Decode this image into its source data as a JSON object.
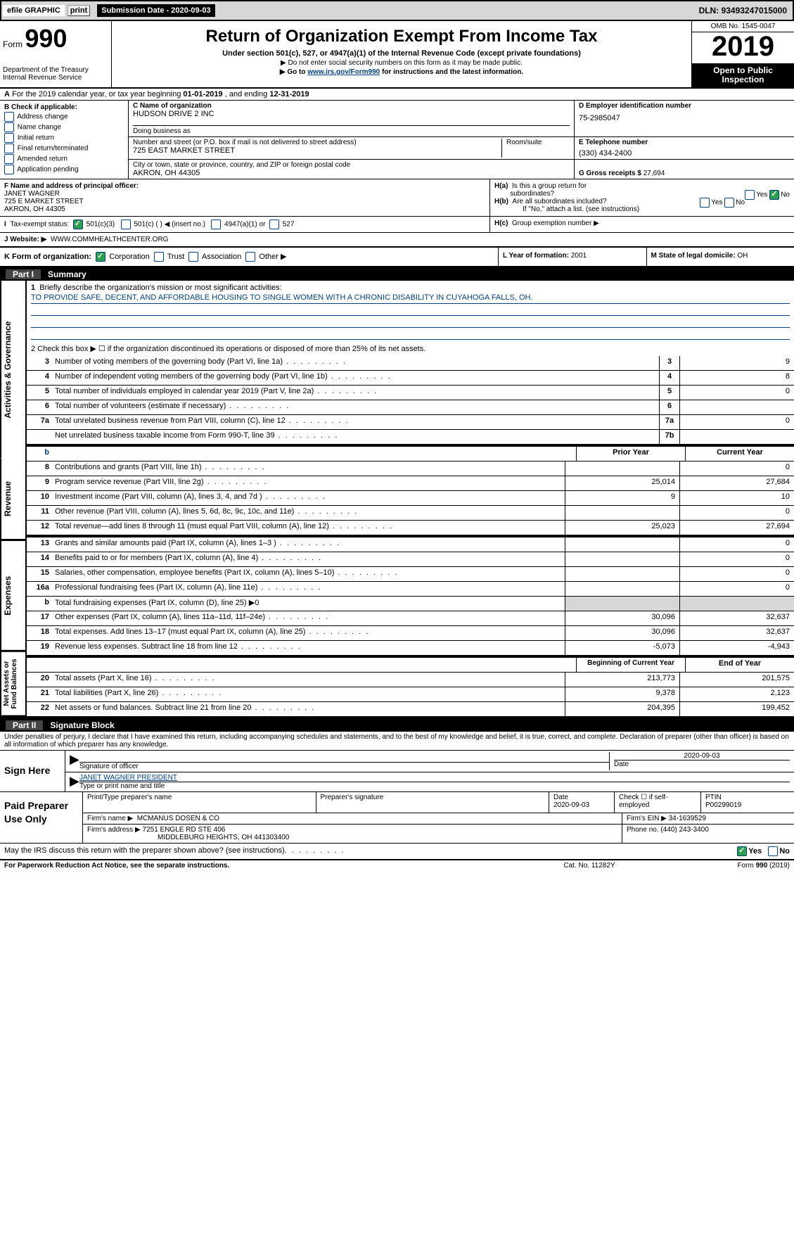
{
  "colors": {
    "link": "#004080",
    "check_green": "#2e9e4f",
    "shaded": "#d7d7d7"
  },
  "top_bar": {
    "efile_link": "efile GRAPHIC",
    "print_btn": "print",
    "submission_label": "Submission Date - ",
    "submission_date": "2020-09-03",
    "dln": "DLN: 93493247015000"
  },
  "header": {
    "form_label": "Form",
    "form_number": "990",
    "title": "Return of Organization Exempt From Income Tax",
    "subtitle": "Under section 501(c), 527, or 4947(a)(1) of the Internal Revenue Code (except private foundations)",
    "note1": "▶ Do not enter social security numbers on this form as it may be made public.",
    "goto_prefix": "▶ Go to ",
    "goto_link": "www.irs.gov/Form990",
    "goto_suffix": " for instructions and the latest information.",
    "dept": "Department of the Treasury\nInternal Revenue Service",
    "omb": "OMB No. 1545-0047",
    "year": "2019",
    "open_public": "Open to Public Inspection"
  },
  "row_a": {
    "label_a": "A",
    "text": "For the 2019 calendar year, or tax year beginning ",
    "begin_date": "01-01-2019",
    "mid": " , and ending ",
    "end_date": "12-31-2019"
  },
  "section_b": {
    "title": "B Check if applicable:",
    "opts": [
      "Address change",
      "Name change",
      "Initial return",
      "Final return/terminated",
      "Amended return",
      "Application pending"
    ]
  },
  "section_c": {
    "label": "C Name of organization",
    "org_name": "HUDSON DRIVE 2 INC",
    "dba_label": "Doing business as",
    "dba": "",
    "addr_label": "Number and street (or P.O. box if mail is not delivered to street address)",
    "room_label": "Room/suite",
    "addr": "725 EAST MARKET STREET",
    "city_label": "City or town, state or province, country, and ZIP or foreign postal code",
    "city": "AKRON, OH  44305"
  },
  "section_d": {
    "label": "D Employer identification number",
    "ein": "75-2985047"
  },
  "section_e": {
    "label": "E Telephone number",
    "phone": "(330) 434-2400"
  },
  "section_g": {
    "label": "G Gross receipts $ ",
    "value": "27,694"
  },
  "section_f": {
    "label": "F  Name and address of principal officer:",
    "name": "JANET WAGNER",
    "addr1": "725 E MARKET STREET",
    "addr2": "AKRON, OH  44305"
  },
  "section_h": {
    "ha": "H(a)  Is this a group return for subordinates?",
    "hb": "H(b)  Are all subordinates included?",
    "hb_note": "If \"No,\" attach a list. (see instructions)",
    "hc": "H(c)  Group exemption number ▶",
    "yes": "Yes",
    "no": "No"
  },
  "section_i": {
    "label": "I  Tax-exempt status:",
    "opt1": "501(c)(3)",
    "opt2": "501(c) (  ) ◀ (insert no.)",
    "opt3": "4947(a)(1) or",
    "opt4": "527"
  },
  "section_j": {
    "label": "J  Website: ▶",
    "url": "WWW.COMMHEALTHCENTER.ORG"
  },
  "section_k": {
    "label": "K Form of organization:",
    "opts": [
      "Corporation",
      "Trust",
      "Association",
      "Other ▶"
    ]
  },
  "section_l": {
    "label": "L Year of formation: ",
    "value": "2001"
  },
  "section_m": {
    "label": "M State of legal domicile: ",
    "value": "OH"
  },
  "part1": {
    "header_num": "Part I",
    "header_title": "Summary",
    "side_labels": {
      "governance": "Activities & Governance",
      "revenue": "Revenue",
      "expenses": "Expenses",
      "net": "Net Assets or Fund Balances"
    },
    "line1_label": "1  Briefly describe the organization's mission or most significant activities:",
    "mission": "TO PROVIDE SAFE, DECENT, AND AFFORDABLE HOUSING TO SINGLE WOMEN WITH A CHRONIC DISABILITY IN CUYAHOGA FALLS, OH.",
    "line2": "2  Check this box ▶ ☐  if the organization discontinued its operations or disposed of more than 25% of its net assets.",
    "rows_governance": [
      {
        "num": "3",
        "desc": "Number of voting members of the governing body (Part VI, line 1a)",
        "box": "3",
        "val": "9"
      },
      {
        "num": "4",
        "desc": "Number of independent voting members of the governing body (Part VI, line 1b)",
        "box": "4",
        "val": "8"
      },
      {
        "num": "5",
        "desc": "Total number of individuals employed in calendar year 2019 (Part V, line 2a)",
        "box": "5",
        "val": "0"
      },
      {
        "num": "6",
        "desc": "Total number of volunteers (estimate if necessary)",
        "box": "6",
        "val": ""
      },
      {
        "num": "7a",
        "desc": "Total unrelated business revenue from Part VIII, column (C), line 12",
        "box": "7a",
        "val": "0"
      },
      {
        "num": "",
        "desc": "Net unrelated business taxable income from Form 990-T, line 39",
        "box": "7b",
        "val": ""
      }
    ],
    "col_headers": {
      "b_empty": "b",
      "prior": "Prior Year",
      "current": "Current Year",
      "begin": "Beginning of Current Year",
      "end": "End of Year"
    },
    "rows_revenue": [
      {
        "num": "8",
        "desc": "Contributions and grants (Part VIII, line 1h)",
        "prior": "",
        "current": "0"
      },
      {
        "num": "9",
        "desc": "Program service revenue (Part VIII, line 2g)",
        "prior": "25,014",
        "current": "27,684"
      },
      {
        "num": "10",
        "desc": "Investment income (Part VIII, column (A), lines 3, 4, and 7d )",
        "prior": "9",
        "current": "10"
      },
      {
        "num": "11",
        "desc": "Other revenue (Part VIII, column (A), lines 5, 6d, 8c, 9c, 10c, and 11e)",
        "prior": "",
        "current": "0"
      },
      {
        "num": "12",
        "desc": "Total revenue—add lines 8 through 11 (must equal Part VIII, column (A), line 12)",
        "prior": "25,023",
        "current": "27,694"
      }
    ],
    "rows_expenses": [
      {
        "num": "13",
        "desc": "Grants and similar amounts paid (Part IX, column (A), lines 1–3 )",
        "prior": "",
        "current": "0"
      },
      {
        "num": "14",
        "desc": "Benefits paid to or for members (Part IX, column (A), line 4)",
        "prior": "",
        "current": "0"
      },
      {
        "num": "15",
        "desc": "Salaries, other compensation, employee benefits (Part IX, column (A), lines 5–10)",
        "prior": "",
        "current": "0"
      },
      {
        "num": "16a",
        "desc": "Professional fundraising fees (Part IX, column (A), line 11e)",
        "prior": "",
        "current": "0"
      },
      {
        "num": "b",
        "desc": "Total fundraising expenses (Part IX, column (D), line 25) ▶0",
        "prior": "SHADE",
        "current": "SHADE"
      },
      {
        "num": "17",
        "desc": "Other expenses (Part IX, column (A), lines 11a–11d, 11f–24e)",
        "prior": "30,096",
        "current": "32,637"
      },
      {
        "num": "18",
        "desc": "Total expenses. Add lines 13–17 (must equal Part IX, column (A), line 25)",
        "prior": "30,096",
        "current": "32,637"
      },
      {
        "num": "19",
        "desc": "Revenue less expenses. Subtract line 18 from line 12",
        "prior": "-5,073",
        "current": "-4,943"
      }
    ],
    "rows_net": [
      {
        "num": "20",
        "desc": "Total assets (Part X, line 16)",
        "prior": "213,773",
        "current": "201,575"
      },
      {
        "num": "21",
        "desc": "Total liabilities (Part X, line 26)",
        "prior": "9,378",
        "current": "2,123"
      },
      {
        "num": "22",
        "desc": "Net assets or fund balances. Subtract line 21 from line 20",
        "prior": "204,395",
        "current": "199,452"
      }
    ]
  },
  "part2": {
    "header_num": "Part II",
    "header_title": "Signature Block",
    "declaration": "Under penalties of perjury, I declare that I have examined this return, including accompanying schedules and statements, and to the best of my knowledge and belief, it is true, correct, and complete. Declaration of preparer (other than officer) is based on all information of which preparer has any knowledge."
  },
  "sign_here": {
    "label": "Sign Here",
    "sig_label": "Signature of officer",
    "date_label": "Date",
    "date_value": "2020-09-03",
    "name_value": "JANET WAGNER  PRESIDENT",
    "name_label": "Type or print name and title"
  },
  "preparer": {
    "label": "Paid Preparer Use Only",
    "print_name_label": "Print/Type preparer's name",
    "sig_label": "Preparer's signature",
    "date_label": "Date",
    "date_value": "2020-09-03",
    "check_label": "Check ☐ if self-employed",
    "ptin_label": "PTIN",
    "ptin_value": "P00299019",
    "firm_name_label": "Firm's name     ▶",
    "firm_name": "MCMANUS DOSEN & CO",
    "firm_ein_label": "Firm's EIN ▶",
    "firm_ein": "34-1639529",
    "firm_addr_label": "Firm's address ▶",
    "firm_addr1": "7251 ENGLE RD STE 406",
    "firm_addr2": "MIDDLEBURG HEIGHTS, OH  441303400",
    "phone_label": "Phone no. ",
    "phone": "(440) 243-3400"
  },
  "discuss": {
    "text": "May the IRS discuss this return with the preparer shown above? (see instructions)",
    "yes": "Yes",
    "no": "No"
  },
  "footer": {
    "paperwork": "For Paperwork Reduction Act Notice, see the separate instructions.",
    "catno": "Cat. No. 11282Y",
    "formno": "Form 990 (2019)"
  }
}
